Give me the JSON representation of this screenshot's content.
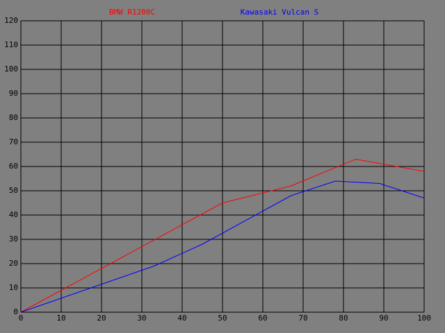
{
  "chart_data": {
    "type": "line",
    "series": [
      {
        "name": "BMW R1200C",
        "color": "#ff0000",
        "x": [
          0,
          50,
          67,
          83,
          100
        ],
        "values": [
          0,
          45,
          52,
          63,
          58
        ]
      },
      {
        "name": "Kawasaki Vulcan S",
        "color": "#0000ff",
        "x": [
          0,
          33,
          45,
          67,
          78,
          89,
          100
        ],
        "values": [
          0,
          19,
          28,
          48,
          54,
          53,
          47
        ]
      }
    ],
    "xlim": [
      0,
      100
    ],
    "xticks": [
      0,
      10,
      20,
      30,
      40,
      50,
      60,
      70,
      80,
      90,
      100
    ],
    "ylim": [
      0,
      120
    ],
    "yticks": [
      0,
      10,
      20,
      30,
      40,
      50,
      60,
      70,
      80,
      90,
      100,
      110,
      120
    ],
    "grid": true,
    "background": "#808080"
  }
}
